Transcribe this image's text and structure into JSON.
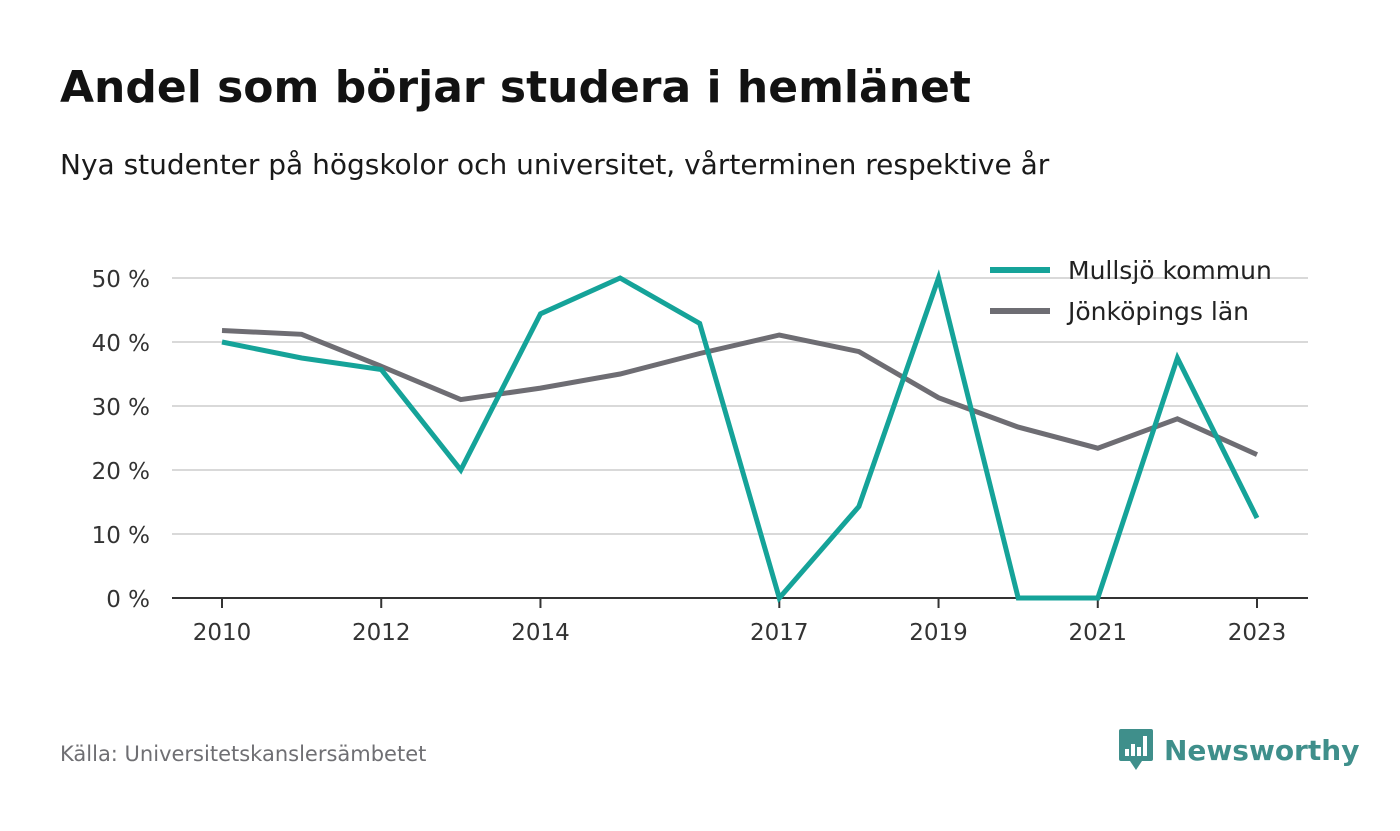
{
  "title": "Andel som börjar studera i hemlänet",
  "subtitle": "Nya studenter på högskolor och universitet, vårterminen respektive år",
  "source": "Källa: Universitetskanslersämbetet",
  "brand": {
    "name": "Newsworthy",
    "icon": "newsworthy-logo-icon",
    "color": "#3f8f8b"
  },
  "chart_data": {
    "type": "line",
    "x": [
      2010,
      2011,
      2012,
      2013,
      2014,
      2015,
      2016,
      2017,
      2018,
      2019,
      2020,
      2021,
      2022,
      2023
    ],
    "x_tick_labels": [
      "2010",
      "2012",
      "2014",
      "2017",
      "2019",
      "2021",
      "2023"
    ],
    "y_tick_labels": [
      "0 %",
      "10 %",
      "20 %",
      "30 %",
      "40 %",
      "50 %"
    ],
    "ylim": [
      0,
      50
    ],
    "grid": true,
    "legend_position": "top-right",
    "series": [
      {
        "name": "Mullsjö kommun",
        "color": "#15a399",
        "values": [
          40,
          37.5,
          35.7,
          20,
          44.4,
          50,
          42.9,
          0,
          14.3,
          50,
          0,
          0,
          37.5,
          12.5
        ]
      },
      {
        "name": "Jönköpings län",
        "color": "#6e6d73",
        "values": [
          41.8,
          41.2,
          36.2,
          31,
          32.8,
          35,
          38.2,
          41.1,
          38.5,
          31.3,
          26.7,
          23.4,
          28,
          22.4
        ]
      }
    ]
  }
}
